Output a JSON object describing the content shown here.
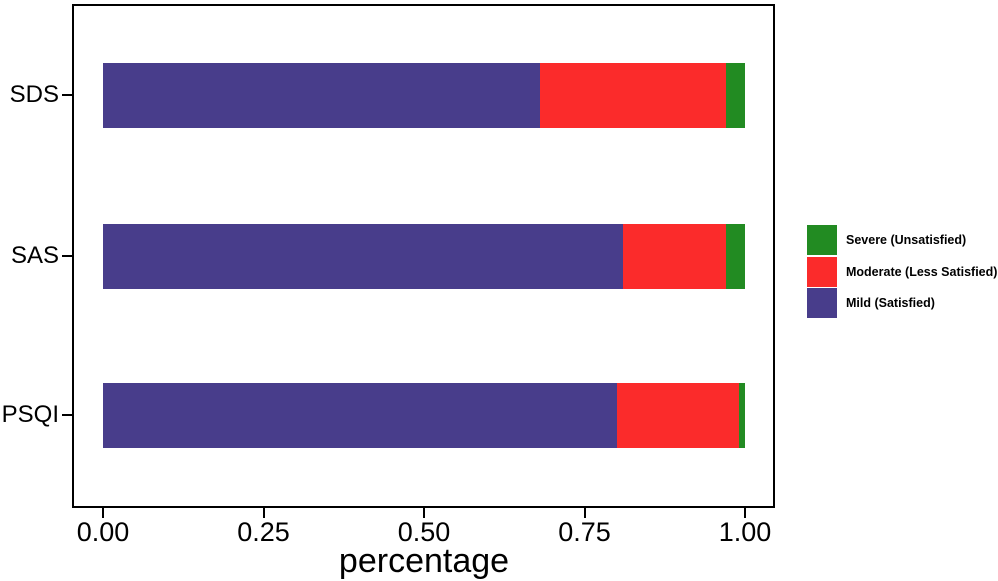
{
  "figure": {
    "background": "#ffffff",
    "border_color": "#000000"
  },
  "chart_data": {
    "type": "bar",
    "orientation": "horizontal",
    "stacked": true,
    "title": "",
    "xlabel": "percentage",
    "ylabel": "",
    "categories": [
      "SDS",
      "SAS",
      "PSQI"
    ],
    "series": [
      {
        "name": "Mild (Satisfied)",
        "color": "#483D8B",
        "values": [
          0.68,
          0.81,
          0.8
        ]
      },
      {
        "name": "Moderate (Less Satisfied)",
        "color": "#FB2B2B",
        "values": [
          0.29,
          0.16,
          0.19
        ]
      },
      {
        "name": "Severe (Unsatisfied)",
        "color": "#228B22",
        "values": [
          0.03,
          0.03,
          0.01
        ]
      }
    ],
    "x_ticks": [
      {
        "label": "0.00",
        "value": 0.0
      },
      {
        "label": "0.25",
        "value": 0.25
      },
      {
        "label": "0.50",
        "value": 0.5
      },
      {
        "label": "0.75",
        "value": 0.75
      },
      {
        "label": "1.00",
        "value": 1.0
      }
    ],
    "xlim": [
      0,
      1.0
    ],
    "grid": false,
    "legend_position": "right",
    "legend": [
      {
        "label": "Severe (Unsatisfied)",
        "color": "#228B22"
      },
      {
        "label": "Moderate (Less Satisfied)",
        "color": "#FB2B2B"
      },
      {
        "label": "Mild (Satisfied)",
        "color": "#483D8B"
      }
    ]
  }
}
